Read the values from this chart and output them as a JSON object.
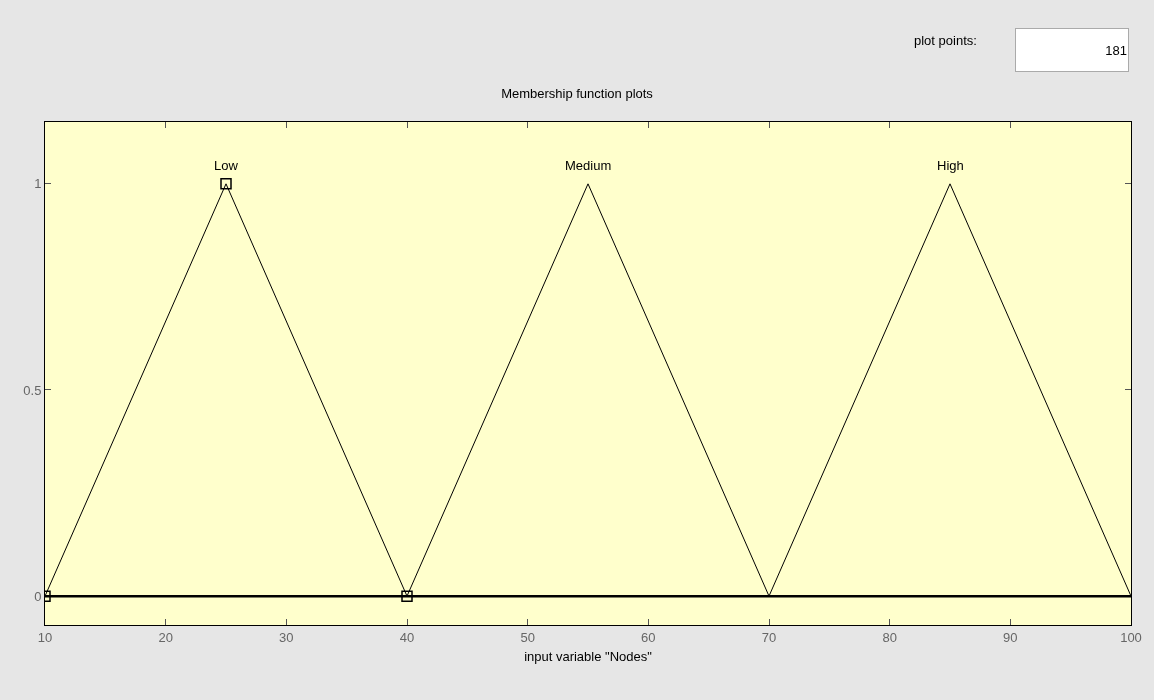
{
  "chart_data": {
    "type": "line",
    "title": "Membership function plots",
    "xlabel": "input variable \"Nodes\"",
    "annotations": [
      "plot points:",
      "181"
    ],
    "xlim": [
      10,
      100
    ],
    "xticks": [
      10,
      20,
      30,
      40,
      50,
      60,
      70,
      80,
      90,
      100
    ],
    "ylim": [
      -0.07,
      1.15
    ],
    "yticks": [
      0,
      0.5,
      1
    ],
    "grid": false,
    "legend": false,
    "line_style": "solid",
    "ref_lines": [
      {
        "axis": "y",
        "value": 0,
        "color": "#000000"
      }
    ],
    "series": [
      {
        "name": "Low",
        "color": "#000000",
        "x": [
          10,
          25,
          40
        ],
        "values": [
          0,
          1,
          0
        ],
        "marker": "square"
      },
      {
        "name": "Medium",
        "color": "#000000",
        "x": [
          40,
          55,
          70
        ],
        "values": [
          0,
          1,
          0
        ],
        "marker": "none"
      },
      {
        "name": "High",
        "color": "#000000",
        "x": [
          70,
          85,
          100
        ],
        "values": [
          0,
          1,
          0
        ],
        "marker": "none"
      }
    ]
  }
}
